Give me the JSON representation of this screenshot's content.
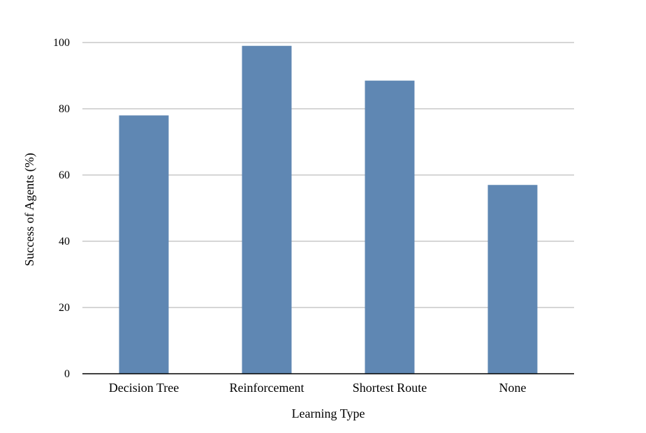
{
  "chart_data": {
    "type": "bar",
    "categories": [
      "Decision Tree",
      "Reinforcement",
      "Shortest Route",
      "None"
    ],
    "values": [
      78,
      99,
      88.5,
      57
    ],
    "title": "",
    "xlabel": "Learning Type",
    "ylabel": "Success of Agents (%)",
    "ylim": [
      0,
      100
    ],
    "yticks": [
      "0",
      "20",
      "40",
      "60",
      "80",
      "100"
    ],
    "grid": true,
    "legend": "none",
    "bar_color": "#5f87b3"
  }
}
